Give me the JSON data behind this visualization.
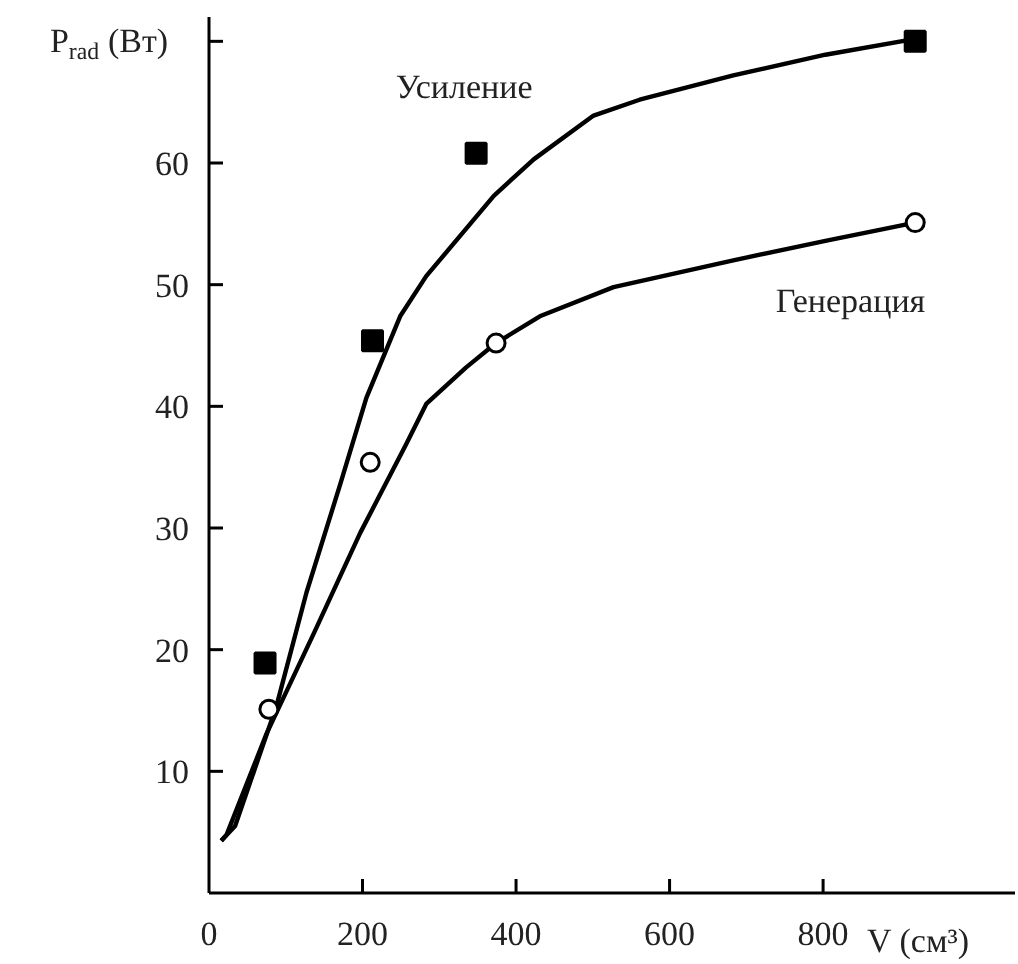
{
  "chart_data": {
    "type": "scatter",
    "xlabel": "V (см³)",
    "ylabel": "P$_{rad}$ (Вт)",
    "xlim": [
      0,
      1050
    ],
    "ylim": [
      0,
      72
    ],
    "xticks": [
      0,
      200,
      400,
      600,
      800
    ],
    "yticks": [
      10,
      20,
      30,
      40,
      50,
      60,
      {
        "value": 70,
        "label": null
      }
    ],
    "grid": false,
    "legend": false,
    "series": [
      {
        "name": "Усиление",
        "type": "scatter",
        "marker": "square",
        "color": "#000000",
        "x": [
          73,
          213,
          348,
          920
        ],
        "values": [
          18.9,
          45.4,
          60.8,
          70
        ]
      },
      {
        "name": "Генерация",
        "type": "scatter",
        "marker": "circle",
        "color": "#000000",
        "x": [
          78,
          210,
          374,
          920
        ],
        "values": [
          15.1,
          35.4,
          45.2,
          55.1
        ]
      },
      {
        "type": "line",
        "color": "#000000",
        "line_style": "solid",
        "x": [
          16,
          34,
          88,
          127,
          171,
          205,
          249,
          283,
          371,
          423,
          501,
          561,
          683,
          803,
          920
        ],
        "values": [
          4.3,
          5.5,
          15.4,
          24.7,
          33.6,
          40.7,
          47.4,
          50.7,
          57.3,
          60.3,
          63.9,
          65.2,
          67.2,
          68.9,
          70.2
        ]
      },
      {
        "type": "line",
        "color": "#000000",
        "line_style": "solid",
        "x": [
          16,
          23,
          75,
          137,
          197,
          257,
          283,
          335,
          374,
          431,
          527,
          683,
          803,
          920
        ],
        "values": [
          4.3,
          4.8,
          13.1,
          21.4,
          29.6,
          36.9,
          40.2,
          43.2,
          45.2,
          47.4,
          49.8,
          52,
          53.6,
          55.1
        ]
      }
    ]
  }
}
